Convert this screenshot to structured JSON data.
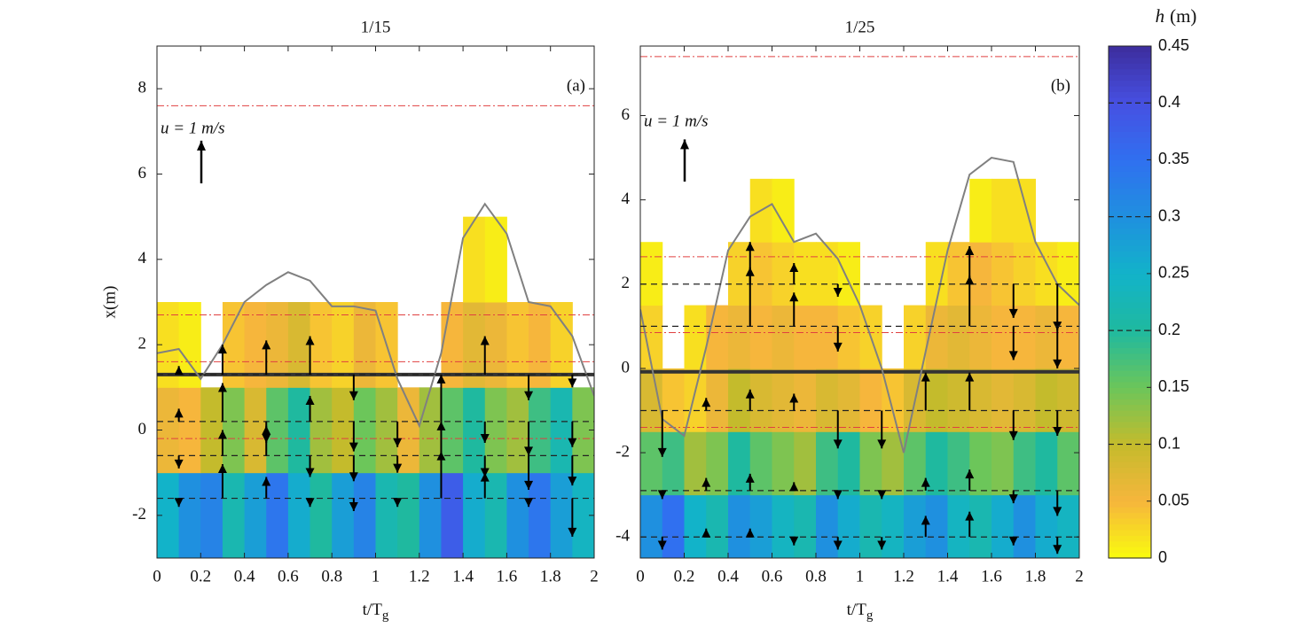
{
  "chart_data": [
    {
      "type": "contour",
      "title": "1/15",
      "label": "(a)",
      "ylabel": "x(m)",
      "xlabel": "t/T",
      "xlabel_sub": "g",
      "xlim": [
        0,
        2
      ],
      "ylim": [
        -3,
        9
      ],
      "xticks": [
        0,
        0.2,
        0.4,
        0.6,
        0.8,
        1,
        1.2,
        1.4,
        1.6,
        1.8,
        2
      ],
      "yticks": [
        -2,
        0,
        2,
        4,
        6,
        8
      ],
      "t_edges": [
        0,
        0.1,
        0.2,
        0.3,
        0.4,
        0.5,
        0.6,
        0.7,
        0.8,
        0.9,
        1,
        1.1,
        1.2,
        1.3,
        1.4,
        1.5,
        1.6,
        1.7,
        1.8,
        1.9,
        2
      ],
      "x_edges": [
        -3,
        -1,
        1,
        3,
        5
      ],
      "h": [
        [
          0.25,
          0.3,
          0.32,
          0.22,
          0.28,
          0.34,
          0.26,
          0.2,
          0.28,
          0.32,
          0.22,
          0.2,
          0.3,
          0.38,
          0.26,
          0.22,
          0.3,
          0.34,
          0.28,
          0.24
        ],
        [
          0.06,
          0.05,
          0.1,
          0.14,
          0.08,
          0.16,
          0.2,
          0.12,
          0.1,
          0.15,
          0.12,
          0.06,
          0.12,
          0.16,
          0.2,
          0.14,
          0.12,
          0.18,
          0.22,
          0.14
        ],
        [
          0.02,
          0.01,
          null,
          0.04,
          0.05,
          0.06,
          0.08,
          0.04,
          0.03,
          0.06,
          0.04,
          null,
          null,
          0.05,
          0.07,
          0.06,
          0.04,
          0.05,
          0.03,
          null
        ],
        [
          null,
          null,
          null,
          null,
          null,
          null,
          null,
          null,
          null,
          null,
          null,
          null,
          null,
          null,
          0.02,
          0.01,
          null,
          null,
          null,
          null
        ]
      ],
      "shoreline": {
        "color": "#808080",
        "t": [
          0,
          0.1,
          0.2,
          0.3,
          0.4,
          0.5,
          0.6,
          0.7,
          0.8,
          0.9,
          1,
          1.1,
          1.2,
          1.3,
          1.4,
          1.5,
          1.6,
          1.7,
          1.8,
          1.9,
          2
        ],
        "x": [
          1.8,
          1.9,
          1.2,
          2.0,
          3.0,
          3.4,
          3.7,
          3.5,
          2.9,
          2.9,
          2.8,
          1.2,
          0.1,
          1.8,
          4.5,
          5.3,
          4.6,
          3.0,
          2.9,
          2.2,
          0.8
        ]
      },
      "still_water": 1.3,
      "red_lines": [
        7.6,
        2.7,
        1.6,
        -0.2
      ],
      "gauges": {
        "t": [
          0.1,
          0.3,
          0.5,
          0.7,
          0.9,
          1.1,
          1.3,
          1.5,
          1.7,
          1.9
        ],
        "x": [
          1.3,
          0.2,
          -0.6,
          -1.6
        ],
        "u": [
          [
            0.2,
            0.7,
            0.8,
            0.9,
            -0.6,
            0,
            0,
            0.9,
            -0.6,
            -0.3
          ],
          [
            0.3,
            0.9,
            -0.5,
            0.6,
            -0.7,
            -0.6,
            1.1,
            -0.5,
            -0.8,
            -0.6
          ],
          [
            -0.3,
            0.6,
            0.7,
            -0.5,
            -0.6,
            -0.4,
            0.8,
            -0.5,
            -0.8,
            -0.7
          ],
          [
            -0.2,
            0.8,
            0.5,
            -0.2,
            -0.3,
            -0.2,
            1.1,
            0.6,
            -0.2,
            -0.9
          ]
        ]
      },
      "ref_label": "u = 1 m/s",
      "ref_u": 1
    },
    {
      "type": "contour",
      "title": "1/25",
      "label": "(b)",
      "xlabel": "t/T",
      "xlabel_sub": "g",
      "xlim": [
        0,
        2
      ],
      "ylim": [
        -4.5,
        7.65
      ],
      "xticks": [
        0,
        0.2,
        0.4,
        0.6,
        0.8,
        1,
        1.2,
        1.4,
        1.6,
        1.8,
        2
      ],
      "yticks": [
        -4,
        -2,
        0,
        2,
        4,
        6
      ],
      "t_edges": [
        0,
        0.1,
        0.2,
        0.3,
        0.4,
        0.5,
        0.6,
        0.7,
        0.8,
        0.9,
        1,
        1.1,
        1.2,
        1.3,
        1.4,
        1.5,
        1.6,
        1.7,
        1.8,
        1.9,
        2
      ],
      "x_edges": [
        -4.5,
        -3,
        -1.5,
        0,
        1.5,
        3,
        4.5
      ],
      "h": [
        [
          0.3,
          0.35,
          0.25,
          0.22,
          0.3,
          0.28,
          0.24,
          0.22,
          0.3,
          0.26,
          0.22,
          0.24,
          0.28,
          0.3,
          0.24,
          0.22,
          0.26,
          0.3,
          0.26,
          0.24
        ],
        [
          0.16,
          0.18,
          0.12,
          0.14,
          0.2,
          0.16,
          0.14,
          0.12,
          0.18,
          0.2,
          0.14,
          0.12,
          0.16,
          0.2,
          0.18,
          0.15,
          0.14,
          0.18,
          0.2,
          0.16
        ],
        [
          0.08,
          0.04,
          0.03,
          0.06,
          0.1,
          0.08,
          0.07,
          0.06,
          0.08,
          0.07,
          0.05,
          0.04,
          0.08,
          0.1,
          0.09,
          0.08,
          0.07,
          0.08,
          0.1,
          0.09
        ],
        [
          0.03,
          null,
          0.02,
          0.05,
          0.06,
          0.05,
          0.06,
          0.05,
          0.05,
          0.04,
          0.03,
          null,
          0.03,
          0.06,
          0.07,
          0.06,
          0.05,
          0.05,
          0.06,
          0.05
        ],
        [
          0.01,
          null,
          null,
          null,
          0.03,
          0.04,
          0.03,
          0.02,
          0.02,
          0.01,
          null,
          null,
          null,
          0.02,
          0.04,
          0.05,
          0.04,
          0.03,
          0.02,
          0.01
        ],
        [
          null,
          null,
          null,
          null,
          null,
          0.02,
          0.01,
          null,
          null,
          null,
          null,
          null,
          null,
          null,
          null,
          0.01,
          0.02,
          0.02,
          null,
          null
        ]
      ],
      "shoreline": {
        "color": "#808080",
        "t": [
          0,
          0.1,
          0.2,
          0.3,
          0.4,
          0.5,
          0.6,
          0.7,
          0.8,
          0.9,
          1,
          1.1,
          1.2,
          1.3,
          1.4,
          1.5,
          1.6,
          1.7,
          1.8,
          1.9,
          2
        ],
        "x": [
          1.4,
          -1.2,
          -1.6,
          0.5,
          2.8,
          3.6,
          3.9,
          3.0,
          3.2,
          2.6,
          1.5,
          0.0,
          -2.0,
          0.4,
          2.8,
          4.6,
          5.0,
          4.9,
          3.0,
          2.0,
          1.5
        ]
      },
      "still_water": -0.08,
      "red_lines": [
        7.4,
        2.65,
        0.85,
        -1.4
      ],
      "gauges": {
        "t": [
          0.1,
          0.3,
          0.5,
          0.7,
          0.9,
          1.1,
          1.3,
          1.5,
          1.7,
          1.9
        ],
        "x": [
          2.0,
          1.0,
          -1.0,
          -2.9,
          -4.0
        ],
        "u": [
          [
            0,
            0,
            1.0,
            0.5,
            -0.3,
            0,
            0,
            0.9,
            -0.8,
            -1.1
          ],
          [
            0,
            0,
            1.4,
            0.8,
            -0.6,
            0,
            0,
            1.2,
            -0.8,
            -1.0
          ],
          [
            -1.1,
            0.3,
            0.5,
            0.4,
            -0.9,
            -0.9,
            0.9,
            0.9,
            -0.7,
            -0.6
          ],
          [
            -0.2,
            0.3,
            0.4,
            0.2,
            -0.2,
            -0.2,
            0.3,
            0.5,
            -0.3,
            -0.6
          ],
          [
            -0.3,
            0.2,
            0.2,
            -0.2,
            -0.3,
            -0.3,
            0.5,
            0.6,
            -0.2,
            -0.4
          ]
        ]
      },
      "ref_label": "u = 1 m/s",
      "ref_u": 1
    }
  ],
  "colorbar": {
    "label_var": "h",
    "label_unit": "(m)",
    "lim": [
      0,
      0.45
    ],
    "ticks": [
      0,
      0.05,
      0.1,
      0.15,
      0.2,
      0.25,
      0.3,
      0.35,
      0.4,
      0.45
    ],
    "marked_levels": [
      0.1,
      0.2,
      0.3,
      0.4
    ],
    "colormap": [
      "#f9fb0e",
      "#f6b63c",
      "#c4bb2c",
      "#6cc65a",
      "#1fb99f",
      "#12b3c9",
      "#1f90df",
      "#3070f0",
      "#4650e2",
      "#3d2d9c"
    ]
  }
}
